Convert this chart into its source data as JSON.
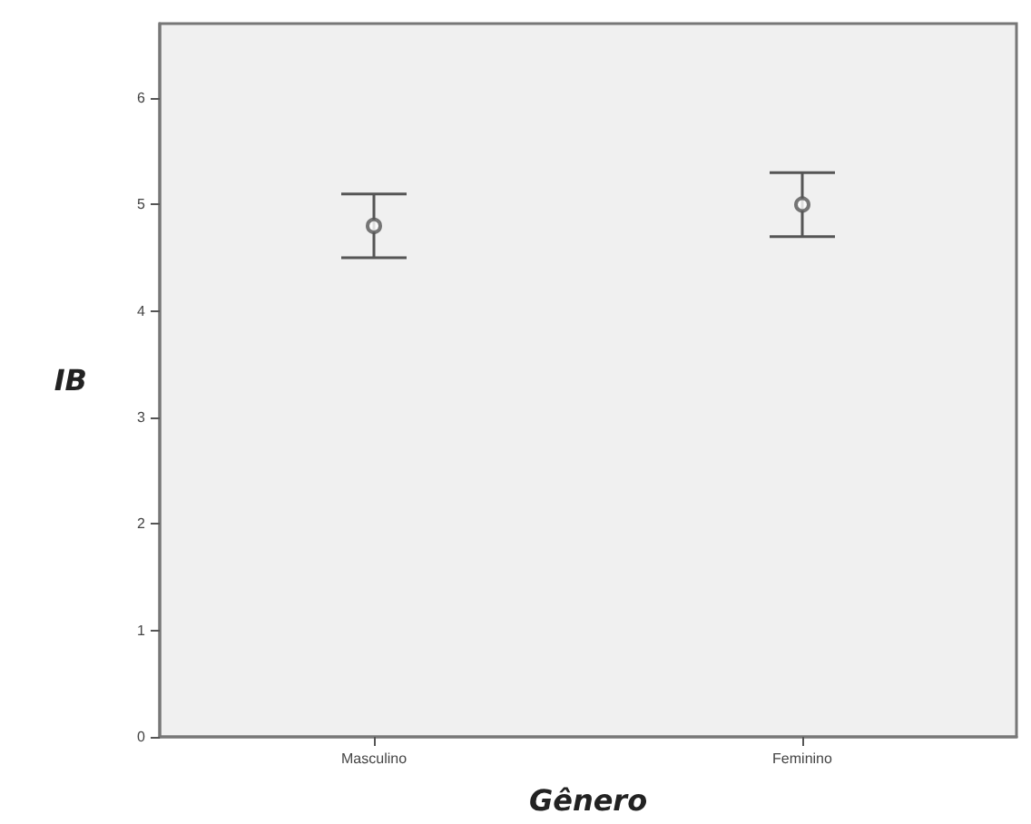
{
  "chart_data": {
    "type": "scatter",
    "xlabel": "Gênero",
    "ylabel": "IB",
    "categories": [
      "Masculino",
      "Feminino"
    ],
    "values": [
      4.8,
      5.0
    ],
    "errors": [
      0.3,
      0.3
    ],
    "color": "#555555",
    "marker": "circle",
    "ylim": [
      0,
      6.7
    ],
    "yticks": [
      0,
      1,
      2,
      3,
      4,
      5,
      6
    ],
    "grid": false
  }
}
